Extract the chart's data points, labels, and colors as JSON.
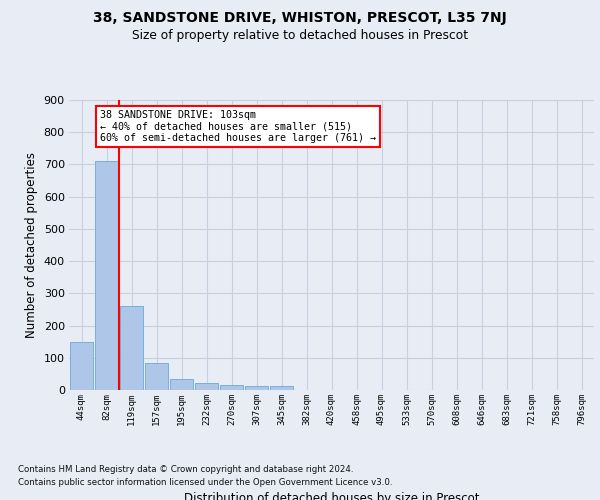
{
  "title_line1": "38, SANDSTONE DRIVE, WHISTON, PRESCOT, L35 7NJ",
  "title_line2": "Size of property relative to detached houses in Prescot",
  "xlabel": "Distribution of detached houses by size in Prescot",
  "ylabel": "Number of detached properties",
  "bin_labels": [
    "44sqm",
    "82sqm",
    "119sqm",
    "157sqm",
    "195sqm",
    "232sqm",
    "270sqm",
    "307sqm",
    "345sqm",
    "382sqm",
    "420sqm",
    "458sqm",
    "495sqm",
    "533sqm",
    "570sqm",
    "608sqm",
    "646sqm",
    "683sqm",
    "721sqm",
    "758sqm",
    "796sqm"
  ],
  "bar_heights": [
    148,
    710,
    262,
    85,
    35,
    22,
    14,
    11,
    11,
    0,
    0,
    0,
    0,
    0,
    0,
    0,
    0,
    0,
    0,
    0,
    0
  ],
  "bar_color": "#aec6e8",
  "bar_edge_color": "#6aaad4",
  "grid_color": "#c8cfe0",
  "bg_color": "#e8ecf5",
  "annotation_text": "38 SANDSTONE DRIVE: 103sqm\n← 40% of detached houses are smaller (515)\n60% of semi-detached houses are larger (761) →",
  "annotation_box_color": "white",
  "annotation_box_edge_color": "red",
  "vertical_line_x": 1.5,
  "ylim_max": 900,
  "yticks": [
    0,
    100,
    200,
    300,
    400,
    500,
    600,
    700,
    800,
    900
  ],
  "footer_line1": "Contains HM Land Registry data © Crown copyright and database right 2024.",
  "footer_line2": "Contains public sector information licensed under the Open Government Licence v3.0."
}
